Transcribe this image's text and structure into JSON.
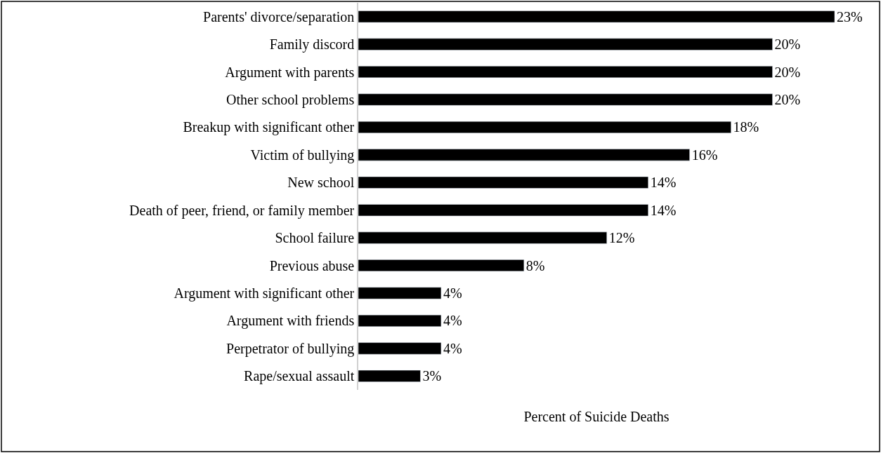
{
  "chart_data": {
    "type": "bar",
    "orientation": "horizontal",
    "xlabel": "Percent of Suicide Deaths",
    "categories": [
      "Parents' divorce/separation",
      "Family discord",
      "Argument with parents",
      "Other school problems",
      "Breakup with significant other",
      "Victim of bullying",
      "New school",
      "Death of peer, friend, or family member",
      "School failure",
      "Previous abuse",
      "Argument with significant other",
      "Argument with friends",
      "Perpetrator of bullying",
      "Rape/sexual assault"
    ],
    "values": [
      23,
      20,
      20,
      20,
      18,
      16,
      14,
      14,
      12,
      8,
      4,
      4,
      4,
      3
    ],
    "value_labels": [
      "23%",
      "20%",
      "20%",
      "20%",
      "18%",
      "16%",
      "14%",
      "14%",
      "12%",
      "8%",
      "4%",
      "4%",
      "4%",
      "3%"
    ],
    "color": "#000000",
    "tick_labels": "y"
  }
}
